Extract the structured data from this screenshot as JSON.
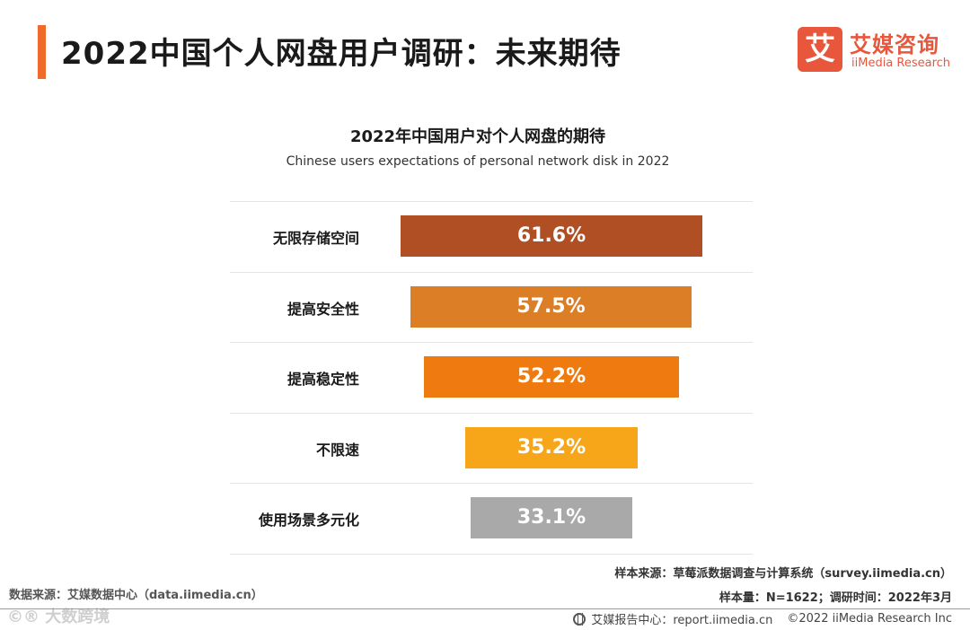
{
  "header": {
    "title": "2022中国个人网盘用户调研：未来期待",
    "accent_color": "#f06a2c"
  },
  "logo": {
    "mark": "艾",
    "name_cn": "艾媒咨询",
    "name_en": "iiMedia Research",
    "color": "#e8563b"
  },
  "chart_data": {
    "type": "bar",
    "orientation": "horizontal",
    "title": "2022年中国用户对个人网盘的期待",
    "subtitle": "Chinese users expectations of personal network disk in 2022",
    "categories": [
      "无限存储空间",
      "提高安全性",
      "提高稳定性",
      "不限速",
      "使用场景多元化"
    ],
    "values": [
      61.6,
      57.5,
      52.2,
      35.2,
      33.1
    ],
    "labels": [
      "61.6%",
      "57.5%",
      "52.2%",
      "35.2%",
      "33.1%"
    ],
    "colors": [
      "#b04e24",
      "#dc7e25",
      "#ee7a10",
      "#f7a519",
      "#a9a9a9"
    ],
    "unit": "%",
    "xlim": [
      0,
      100
    ],
    "bar_alignment": "centered"
  },
  "source": {
    "left": "数据来源：艾媒数据中心（data.iimedia.cn）",
    "sample_source": "样本来源：草莓派数据调查与计算系统（survey.iimedia.cn）",
    "sample_info": "样本量：N=1622；调研时间：2022年3月"
  },
  "watermark": "©® 大数跨境",
  "footer": {
    "center": "艾媒报告中心：report.iimedia.cn",
    "copyright": "©2022 iiMedia Research Inc"
  }
}
